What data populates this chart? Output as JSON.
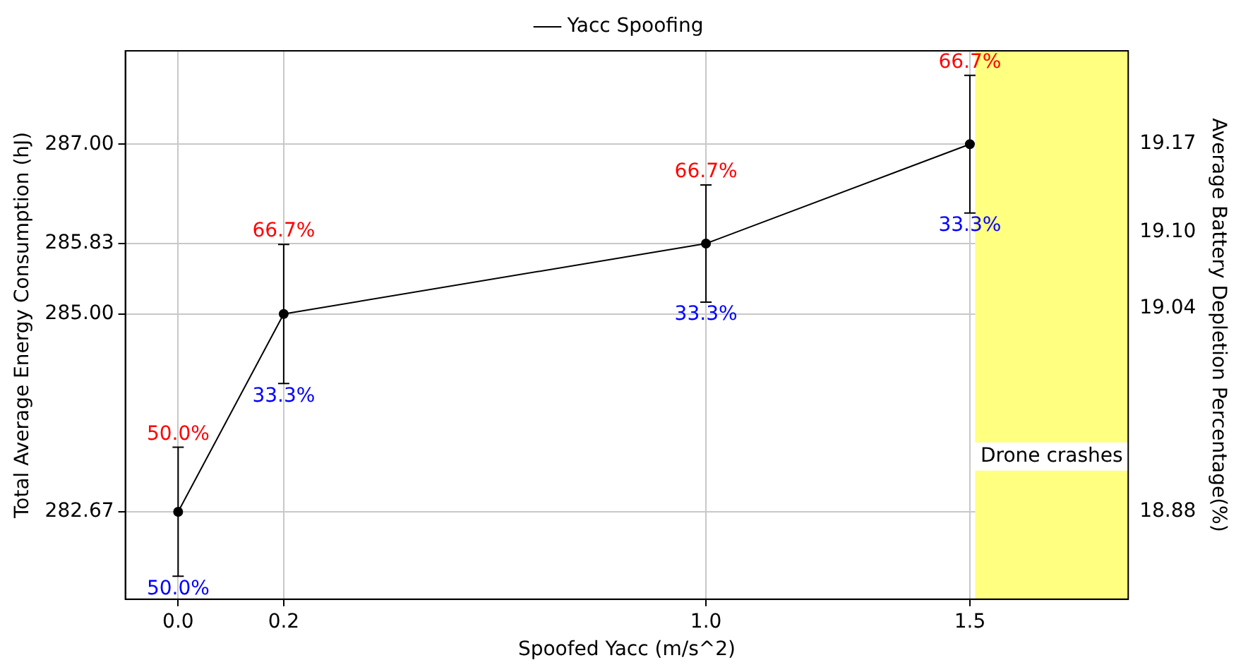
{
  "chart_data": {
    "type": "line",
    "xlabel": "Spoofed Yacc (m/s^2)",
    "ylabel": "Total Average Energy Consumption (hJ)",
    "y2label": "Average Battery Depletion Percentage(%)",
    "x": [
      0,
      0.2,
      1.0,
      1.5
    ],
    "series": [
      {
        "name": "Yacc Spoofing",
        "color": "#000000",
        "values": [
          282.67,
          285.0,
          285.83,
          287.0
        ],
        "errors": [
          0.76,
          0.82,
          0.69,
          0.81
        ]
      }
    ],
    "xlim": [
      -0.1,
      1.8
    ],
    "xticks": [
      {
        "value": 0,
        "label": "0.0"
      },
      {
        "value": 0.2,
        "label": "0.2"
      },
      {
        "value": 1.0,
        "label": "1.0"
      },
      {
        "value": 1.5,
        "label": "1.5"
      }
    ],
    "ylim": [
      281.64,
      288.1
    ],
    "yticks": [
      {
        "value": 282.67,
        "label": "282.67"
      },
      {
        "value": 285,
        "label": "285.00"
      },
      {
        "value": 285.83,
        "label": "285.83"
      },
      {
        "value": 287,
        "label": "287.00"
      }
    ],
    "y2lim": [
      18.811,
      19.243
    ],
    "y2ticks": [
      18.88,
      19.04,
      {
        "value": 19.1,
        "label": "19.10"
      },
      19.17
    ],
    "bands": [
      {
        "axis": "x",
        "from": 1.51,
        "to": 1.8,
        "label": "Drone crashes",
        "color": "#ffff80"
      }
    ],
    "annotations": [
      {
        "text": "50.0%",
        "x": 0,
        "y": 283.43
      },
      {
        "text": "50.0%",
        "x": 0,
        "y": 281.91
      },
      {
        "text": "66.7%",
        "x": 0.2,
        "y": 285.82
      },
      {
        "text": "33.3%",
        "x": 0.2,
        "y": 284.18
      },
      {
        "text": "66.7%",
        "x": 1.0,
        "y": 286.52
      },
      {
        "text": "33.3%",
        "x": 1.0,
        "y": 285.14
      },
      {
        "text": "66.7%",
        "x": 1.5,
        "y": 287.81
      },
      {
        "text": "33.3%",
        "x": 1.5,
        "y": 286.19
      }
    ],
    "grid": true,
    "legend": "top",
    "marker": "circle",
    "line_style": "solid"
  }
}
